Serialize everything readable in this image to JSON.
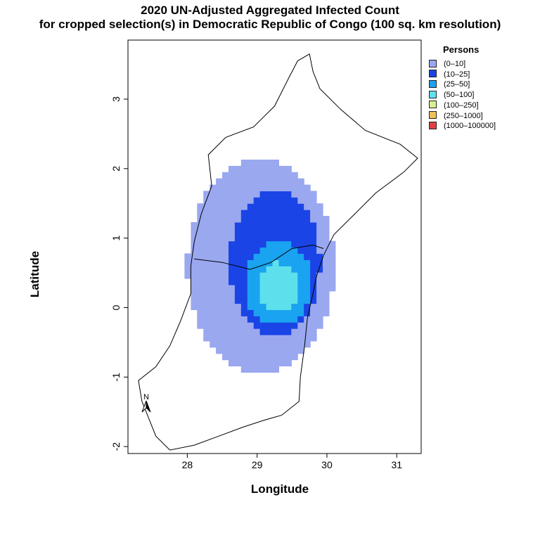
{
  "title": {
    "line1": "2020 UN-Adjusted Aggregated Infected Count",
    "line2": "for cropped selection(s) in Democratic Republic of Congo (100 sq. km resolution)"
  },
  "axes": {
    "xlabel": "Longitude",
    "ylabel": "Latitude",
    "xlim": [
      27.15,
      31.35
    ],
    "ylim": [
      -2.1,
      3.85
    ],
    "xticks": [
      28,
      29,
      30,
      31
    ],
    "yticks": [
      -2,
      -1,
      0,
      1,
      2,
      3
    ]
  },
  "legend": {
    "title": "Persons",
    "placement": "right",
    "items": [
      {
        "label": "(0–10]",
        "color": "#9aa8f0"
      },
      {
        "label": "(10–25]",
        "color": "#1a44e6"
      },
      {
        "label": "(25–50]",
        "color": "#1aa3f0"
      },
      {
        "label": "(50–100]",
        "color": "#5ee0ec"
      },
      {
        "label": "(100–250]",
        "color": "#d7f08e"
      },
      {
        "label": "(250–1000]",
        "color": "#f0c056"
      },
      {
        "label": "(1000–100000]",
        "color": "#e04040"
      }
    ]
  },
  "north_arrow": {
    "label": "N"
  },
  "chart_data": {
    "type": "heatmap",
    "description_units": "longitude/latitude degrees",
    "classes": [
      {
        "class": "(0–10]",
        "region": {
          "center": [
            29.05,
            0.6
          ],
          "radii": [
            1.05,
            1.55
          ]
        }
      },
      {
        "class": "(10–25]",
        "region": {
          "center": [
            29.25,
            0.65
          ],
          "radii": [
            0.65,
            1.05
          ]
        }
      },
      {
        "class": "(25–50]",
        "region": {
          "center": [
            29.3,
            0.35
          ],
          "radii": [
            0.48,
            0.6
          ]
        }
      },
      {
        "class": "(50–100]",
        "region": {
          "center": [
            29.3,
            0.3
          ],
          "radii": [
            0.3,
            0.35
          ]
        }
      }
    ],
    "boundary": {
      "name": "cropped selection outline",
      "points": [
        [
          29.58,
          3.55
        ],
        [
          29.75,
          3.65
        ],
        [
          29.8,
          3.4
        ],
        [
          29.9,
          3.15
        ],
        [
          30.2,
          2.85
        ],
        [
          30.55,
          2.55
        ],
        [
          31.05,
          2.35
        ],
        [
          31.3,
          2.15
        ],
        [
          31.1,
          1.95
        ],
        [
          30.7,
          1.65
        ],
        [
          30.4,
          1.35
        ],
        [
          30.1,
          1.05
        ],
        [
          29.95,
          0.75
        ],
        [
          29.85,
          0.45
        ],
        [
          29.8,
          0.2
        ],
        [
          29.72,
          -0.15
        ],
        [
          29.68,
          -0.55
        ],
        [
          29.62,
          -1.0
        ],
        [
          29.6,
          -1.35
        ],
        [
          29.35,
          -1.55
        ],
        [
          29.1,
          -1.62
        ],
        [
          28.8,
          -1.72
        ],
        [
          28.45,
          -1.85
        ],
        [
          28.1,
          -1.98
        ],
        [
          27.75,
          -2.05
        ],
        [
          27.55,
          -1.85
        ],
        [
          27.35,
          -1.35
        ],
        [
          27.3,
          -1.05
        ],
        [
          27.55,
          -0.85
        ],
        [
          27.75,
          -0.55
        ],
        [
          27.9,
          -0.2
        ],
        [
          28.05,
          0.2
        ],
        [
          28.05,
          0.6
        ],
        [
          28.1,
          0.95
        ],
        [
          28.2,
          1.35
        ],
        [
          28.35,
          1.75
        ],
        [
          28.3,
          2.2
        ],
        [
          28.55,
          2.45
        ],
        [
          28.95,
          2.6
        ],
        [
          29.25,
          2.9
        ],
        [
          29.45,
          3.3
        ],
        [
          29.58,
          3.55
        ]
      ]
    }
  }
}
